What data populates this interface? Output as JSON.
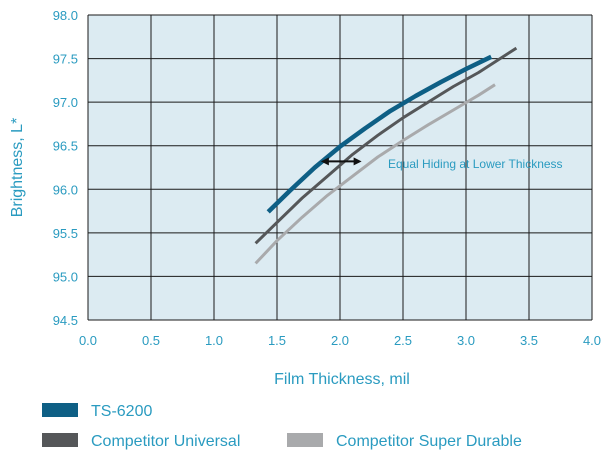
{
  "chart_data": {
    "type": "line",
    "xlabel": "Film Thickness, mil",
    "ylabel": "Brightness, L*",
    "xlim": [
      0.0,
      4.0
    ],
    "ylim": [
      94.5,
      98.0
    ],
    "x_ticks": [
      "0.0",
      "0.5",
      "1.0",
      "1.5",
      "2.0",
      "2.5",
      "3.0",
      "3.5",
      "4.0"
    ],
    "y_ticks": [
      "94.5",
      "95.0",
      "95.5",
      "96.0",
      "96.5",
      "97.0",
      "97.5",
      "98.0"
    ],
    "grid": true,
    "series": [
      {
        "name": "TS-6200",
        "x": [
          1.43,
          1.6,
          1.8,
          2.0,
          2.2,
          2.4,
          2.6,
          2.8,
          3.0,
          3.2
        ],
        "y": [
          95.74,
          95.98,
          96.25,
          96.49,
          96.7,
          96.9,
          97.07,
          97.23,
          97.38,
          97.52
        ]
      },
      {
        "name": "Competitor Universal",
        "x": [
          1.33,
          1.5,
          1.7,
          1.9,
          2.1,
          2.3,
          2.5,
          2.7,
          2.9,
          3.1,
          3.4
        ],
        "y": [
          95.38,
          95.62,
          95.9,
          96.15,
          96.4,
          96.62,
          96.82,
          97.0,
          97.18,
          97.34,
          97.62
        ]
      },
      {
        "name": "Competitor Super Durable",
        "x": [
          1.33,
          1.5,
          1.7,
          1.9,
          2.1,
          2.3,
          2.5,
          2.7,
          2.9,
          3.1,
          3.23
        ],
        "y": [
          95.15,
          95.41,
          95.68,
          95.93,
          96.15,
          96.37,
          96.56,
          96.74,
          96.91,
          97.08,
          97.2
        ]
      }
    ],
    "annotation": {
      "text": "Equal Hiding at Lower Thickness",
      "arrow_x": [
        1.88,
        2.14
      ],
      "arrow_y": 96.32
    },
    "legend_position": "bottom-left"
  },
  "colors": {
    "plot_background": "#dcebf2",
    "accent_text": "#2a9bc0",
    "grid": "#1a1a1a",
    "series": [
      "#0e5f85",
      "#555759",
      "#a9aaac"
    ],
    "arrow": "#111111"
  }
}
